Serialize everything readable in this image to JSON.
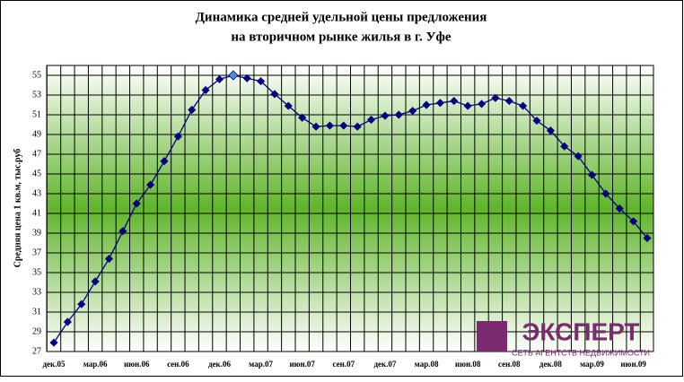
{
  "chart_data": {
    "type": "line",
    "title": "Динамика средней удельной цены предложения",
    "subtitle": "на вторичном рынке жилья в г. Уфе",
    "y_label": "Средняя цена 1 кв.м, тыс.руб",
    "categories": [
      "дек.05",
      null,
      null,
      "мар.06",
      null,
      null,
      "июн.06",
      null,
      null,
      "сен.06",
      null,
      null,
      "дек.06",
      null,
      null,
      "мар.07",
      null,
      null,
      "июн.07",
      null,
      null,
      "сен.07",
      null,
      null,
      "дек.07",
      null,
      null,
      "мар.08",
      null,
      null,
      "июн.08",
      null,
      null,
      "сен.08",
      null,
      null,
      "дек.08",
      null,
      null,
      "мар.09",
      null,
      null,
      "июн.09",
      null
    ],
    "series": [
      {
        "name": "Средняя цена",
        "color": "#000080",
        "values": [
          27.9,
          30.0,
          31.8,
          34.1,
          36.4,
          39.2,
          42.0,
          43.9,
          46.3,
          48.8,
          51.5,
          53.5,
          54.6,
          55.0,
          54.7,
          54.4,
          53.1,
          51.9,
          50.7,
          49.8,
          49.9,
          49.9,
          49.8,
          50.5,
          50.9,
          51.0,
          51.4,
          52.0,
          52.2,
          52.4,
          51.9,
          52.1,
          52.7,
          52.4,
          51.9,
          50.4,
          49.4,
          47.8,
          46.8,
          44.9,
          43.0,
          41.5,
          40.2,
          38.5
        ],
        "highlight_point": 13,
        "highlight_color": "#4f8fe0"
      }
    ],
    "ylim": [
      27,
      56
    ],
    "yticks": [
      27,
      29,
      31,
      33,
      35,
      37,
      39,
      41,
      43,
      45,
      47,
      49,
      51,
      53,
      55
    ],
    "grid": true,
    "logo": {
      "name": "ЭКСПЕРТ",
      "tagline": "СЕТЬ АГЕНТСТВ НЕДВИЖИМОСТИ"
    }
  }
}
